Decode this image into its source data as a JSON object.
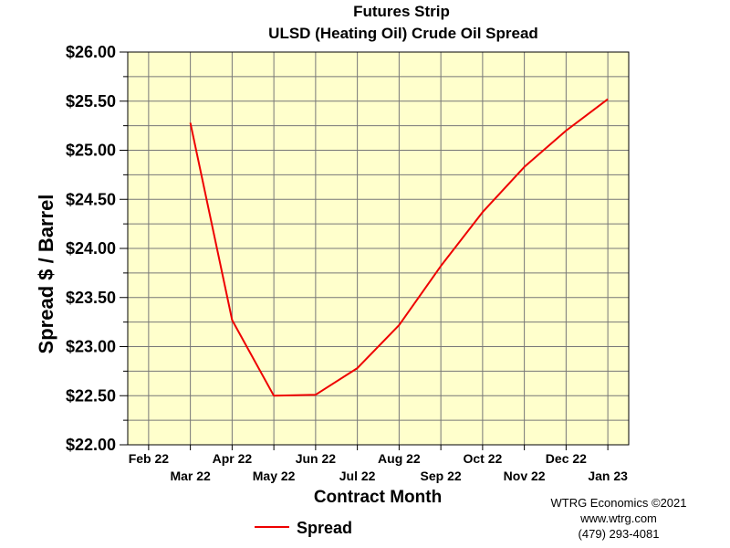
{
  "chart_data": {
    "type": "line",
    "title": "Futures Strip",
    "subtitle": "ULSD (Heating Oil) Crude Oil Spread",
    "xlabel": "Contract Month",
    "ylabel": "Spread $ / Barrel",
    "categories": [
      "Feb 22",
      "Mar 22",
      "Apr 22",
      "May 22",
      "Jun 22",
      "Jul 22",
      "Aug 22",
      "Sep 22",
      "Oct 22",
      "Nov 22",
      "Dec 22",
      "Jan 23"
    ],
    "series": [
      {
        "name": "Spread",
        "color": "#ee0000",
        "values": [
          null,
          25.28,
          23.27,
          22.5,
          22.51,
          22.78,
          23.22,
          23.82,
          24.37,
          24.83,
          25.2,
          25.52
        ]
      }
    ],
    "ylim": [
      22.0,
      26.0
    ],
    "yticks": [
      "$22.00",
      "$22.50",
      "$23.00",
      "$23.50",
      "$24.00",
      "$24.50",
      "$25.00",
      "$25.50",
      "$26.00"
    ],
    "grid": true,
    "plot_background": "#ffffcc",
    "legend_position": "bottom-left"
  },
  "credits": {
    "line1": "WTRG Economics ©2021",
    "line2": "www.wtrg.com",
    "line3": "(479) 293-4081"
  }
}
